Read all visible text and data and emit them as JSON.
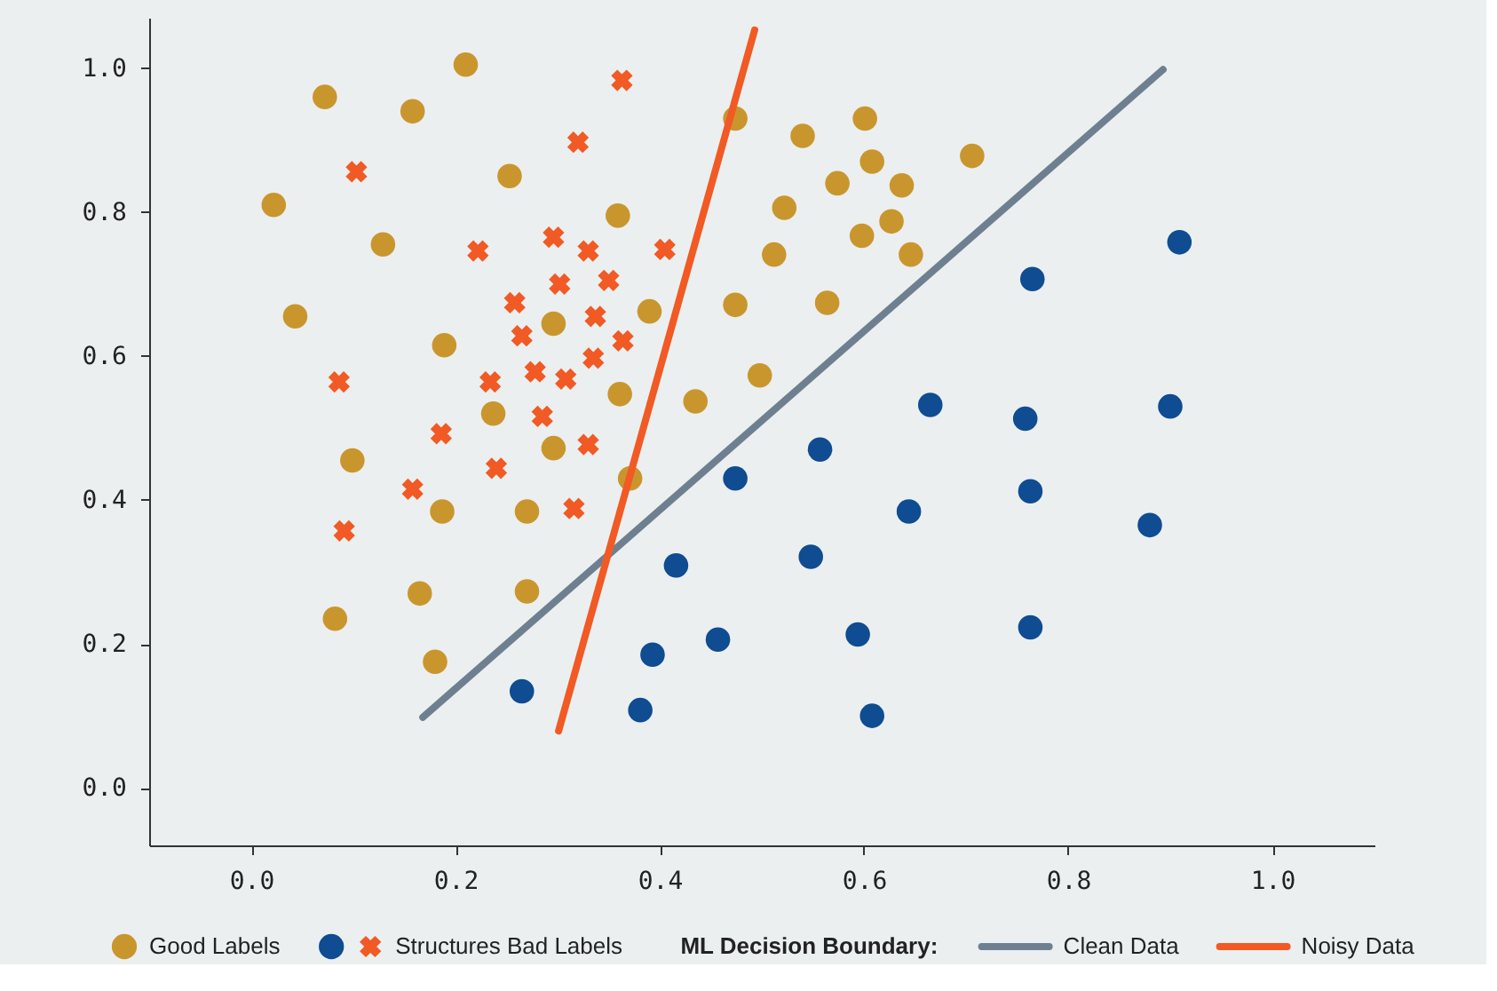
{
  "chart_data": {
    "type": "scatter",
    "xlim": [
      -0.1,
      1.1
    ],
    "ylim": [
      -0.08,
      1.07
    ],
    "xticks": [
      {
        "value": 0,
        "label": "0.0"
      },
      0.2,
      0.4,
      0.6,
      0.8,
      {
        "value": 1,
        "label": "1.0"
      }
    ],
    "yticks": [
      {
        "value": 0,
        "label": "0.0"
      },
      0.2,
      0.4,
      0.6,
      0.8,
      {
        "value": 1,
        "label": "1.0"
      }
    ],
    "grid": false,
    "legend": "bottom",
    "legend_title": "ML Decision Boundary:",
    "series": [
      {
        "name": "Good Labels",
        "type": "scatter",
        "marker": "circle",
        "color": "#c9962e",
        "x": [
          0.072,
          0.21,
          0.158,
          0.022,
          0.129,
          0.043,
          0.253,
          0.359,
          0.189,
          0.296,
          0.237,
          0.361,
          0.39,
          0.099,
          0.187,
          0.27,
          0.296,
          0.371,
          0.082,
          0.165,
          0.27,
          0.18,
          0.474,
          0.54,
          0.601,
          0.608,
          0.574,
          0.637,
          0.706,
          0.522,
          0.627,
          0.598,
          0.512,
          0.646,
          0.474,
          0.564,
          0.498,
          0.435
        ],
        "values": [
          0.96,
          1.005,
          0.94,
          0.81,
          0.755,
          0.655,
          0.85,
          0.795,
          0.615,
          0.645,
          0.52,
          0.547,
          0.662,
          0.455,
          0.384,
          0.384,
          0.472,
          0.43,
          0.235,
          0.27,
          0.273,
          0.175,
          0.93,
          0.906,
          0.93,
          0.87,
          0.84,
          0.837,
          0.878,
          0.806,
          0.787,
          0.767,
          0.741,
          0.741,
          0.671,
          0.674,
          0.573,
          0.537
        ]
      },
      {
        "type": "scatter",
        "marker": "circle",
        "color": "#0f4c91",
        "x": [
          0.909,
          0.765,
          0.665,
          0.758,
          0.9,
          0.557,
          0.474,
          0.763,
          0.644,
          0.88,
          0.416,
          0.548,
          0.594,
          0.763,
          0.457,
          0.393,
          0.265,
          0.381,
          0.608
        ],
        "values": [
          0.758,
          0.707,
          0.532,
          0.513,
          0.53,
          0.47,
          0.43,
          0.412,
          0.384,
          0.365,
          0.309,
          0.321,
          0.213,
          0.223,
          0.206,
          0.185,
          0.134,
          0.108,
          0.1
        ]
      },
      {
        "name": "Structures Bad Labels",
        "type": "scatter",
        "marker": "cross",
        "color": "#f15a24",
        "x": [
          0.363,
          0.32,
          0.103,
          0.222,
          0.296,
          0.33,
          0.405,
          0.302,
          0.35,
          0.258,
          0.337,
          0.265,
          0.364,
          0.335,
          0.278,
          0.308,
          0.086,
          0.234,
          0.285,
          0.186,
          0.33,
          0.24,
          0.158,
          0.316,
          0.091
        ],
        "values": [
          0.983,
          0.897,
          0.856,
          0.746,
          0.765,
          0.746,
          0.748,
          0.7,
          0.705,
          0.674,
          0.655,
          0.628,
          0.621,
          0.597,
          0.578,
          0.568,
          0.564,
          0.564,
          0.516,
          0.492,
          0.477,
          0.444,
          0.415,
          0.388,
          0.357
        ]
      },
      {
        "name": "Clean Data",
        "type": "line",
        "marker": "none",
        "line_style": "solid",
        "color": "#6e8090",
        "x": [
          0.168,
          0.893
        ],
        "values": [
          0.098,
          0.998
        ]
      },
      {
        "name": "Noisy Data",
        "type": "line",
        "marker": "none",
        "line_style": "solid",
        "color": "#f15a24",
        "x": [
          0.301,
          0.493
        ],
        "values": [
          0.079,
          1.053
        ]
      }
    ]
  }
}
